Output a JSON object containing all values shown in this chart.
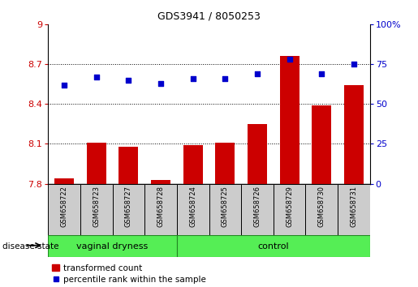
{
  "title": "GDS3941 / 8050253",
  "samples": [
    "GSM658722",
    "GSM658723",
    "GSM658727",
    "GSM658728",
    "GSM658724",
    "GSM658725",
    "GSM658726",
    "GSM658729",
    "GSM658730",
    "GSM658731"
  ],
  "transformed_count": [
    7.84,
    8.11,
    8.08,
    7.83,
    8.09,
    8.11,
    8.25,
    8.76,
    8.39,
    8.54
  ],
  "percentile_rank": [
    62,
    67,
    65,
    63,
    66,
    66,
    69,
    78,
    69,
    75
  ],
  "ylim_left": [
    7.8,
    9.0
  ],
  "ylim_right": [
    0,
    100
  ],
  "yticks_left": [
    7.8,
    8.1,
    8.4,
    8.7,
    9.0
  ],
  "ytick_labels_left": [
    "7.8",
    "8.1",
    "8.4",
    "8.7",
    "9"
  ],
  "yticks_right": [
    0,
    25,
    50,
    75,
    100
  ],
  "ytick_labels_right": [
    "0",
    "25",
    "50",
    "75",
    "100%"
  ],
  "bar_color": "#cc0000",
  "dot_color": "#0000cc",
  "group1_label": "vaginal dryness",
  "group2_label": "control",
  "group1_count": 4,
  "group2_count": 6,
  "group_bg_color": "#55ee55",
  "sample_bg_color": "#cccccc",
  "legend_bar_label": "transformed count",
  "legend_dot_label": "percentile rank within the sample",
  "disease_state_label": "disease state",
  "dotted_line_color": "#000000",
  "right_axis_color": "#0000cc",
  "left_axis_color": "#cc0000",
  "bar_width": 0.6
}
